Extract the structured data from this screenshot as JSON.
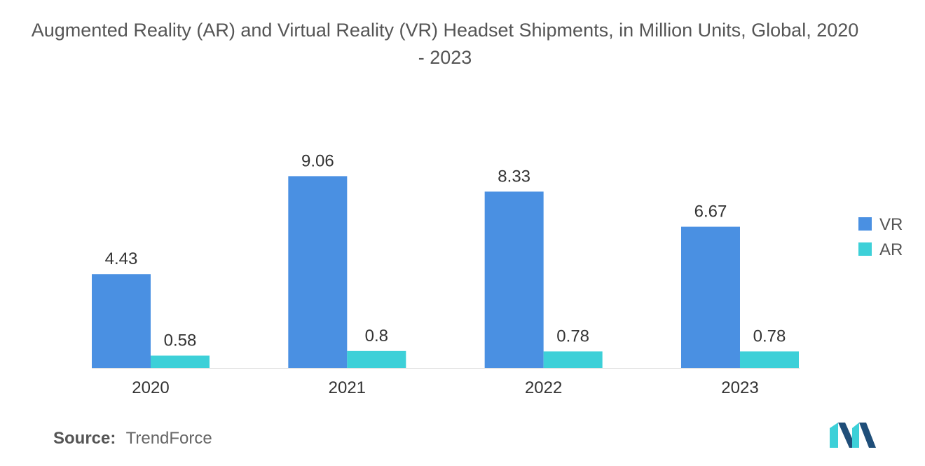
{
  "chart_data": {
    "type": "bar",
    "title": "Augmented Reality (AR) and Virtual Reality (VR) Headset Shipments, in Million Units, Global, 2020 - 2023",
    "categories": [
      "2020",
      "2021",
      "2022",
      "2023"
    ],
    "series": [
      {
        "name": "VR",
        "values": [
          4.43,
          9.06,
          8.33,
          6.67
        ],
        "labels": [
          "4.43",
          "9.06",
          "8.33",
          "6.67"
        ],
        "color": "#4a90e2"
      },
      {
        "name": "AR",
        "values": [
          0.58,
          0.8,
          0.78,
          0.78
        ],
        "labels": [
          "0.58",
          "0.8",
          "0.78",
          "0.78"
        ],
        "color": "#3dd0d8"
      }
    ],
    "xlabel": "",
    "ylabel": "",
    "ylim": [
      0,
      10
    ],
    "grid": false,
    "legend": "right"
  },
  "source": {
    "label": "Source:",
    "value": "TrendForce"
  },
  "colors": {
    "title": "#555555",
    "text": "#333333",
    "axis": "#d9d9d9",
    "logo_dark": "#1f4e79",
    "logo_light": "#3dd0d8"
  }
}
